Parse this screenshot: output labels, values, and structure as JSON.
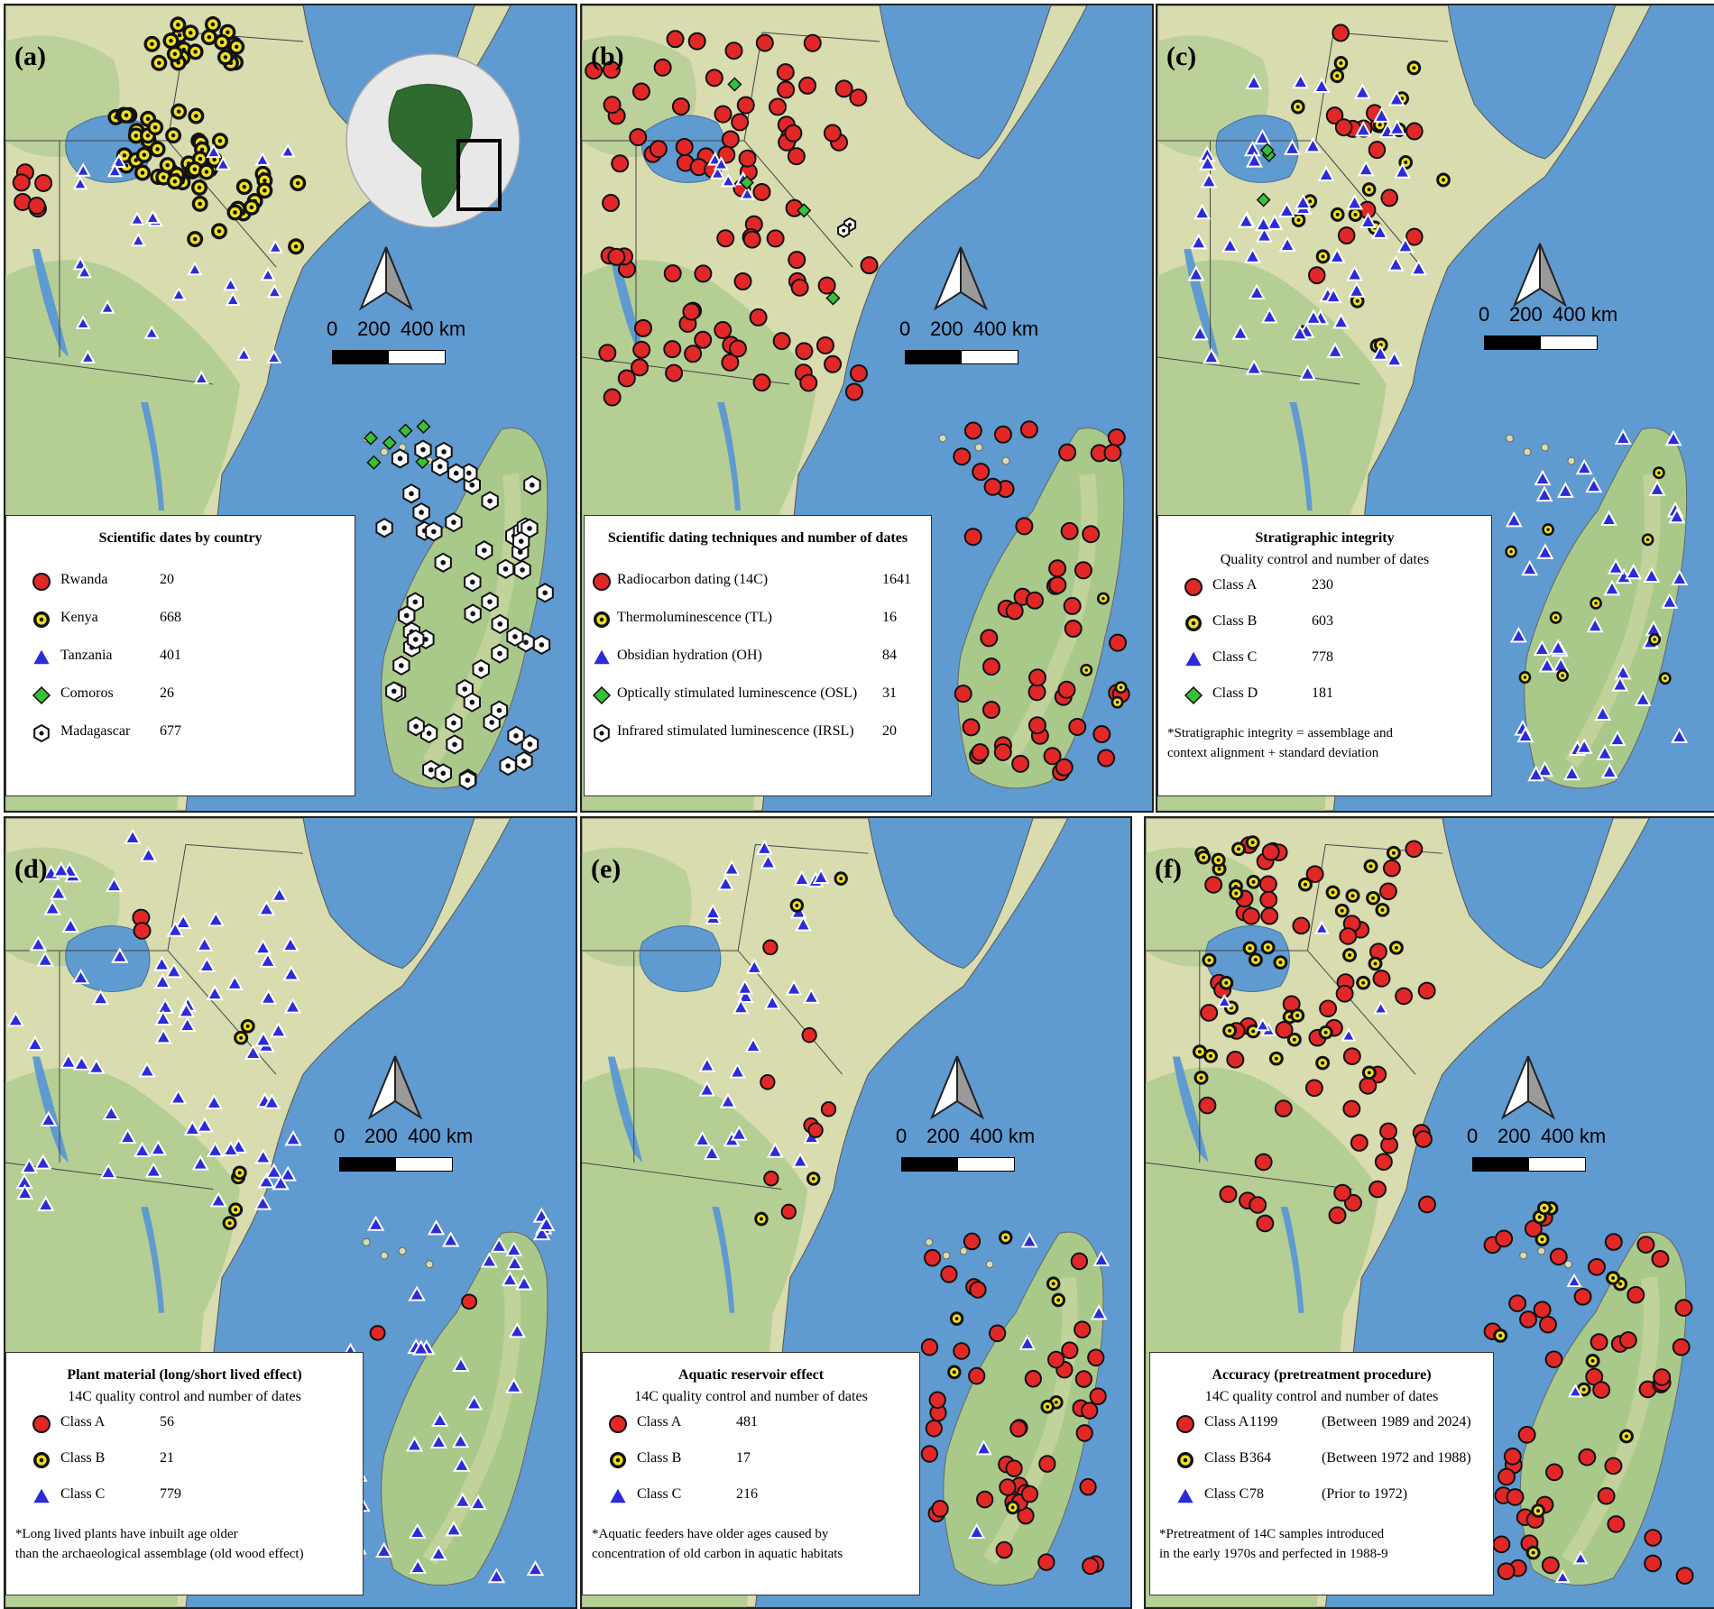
{
  "map": {
    "scale_labels": [
      "0",
      "200",
      "400 km"
    ],
    "colors": {
      "sea": "#5f9ad0",
      "land": "#d8dcae",
      "land_green": "#a9c98b",
      "class_a": "#e22727",
      "class_b_ring": "#f0e020",
      "class_c": "#2b2bd8",
      "class_d": "#38c038",
      "madagascar": "#ffffff"
    }
  },
  "panels": [
    {
      "label": "(a)",
      "legend": {
        "title": "Scientific dates by country",
        "subtitle": "",
        "rows": [
          {
            "symbol": "circle-red",
            "name": "Rwanda",
            "count": "20",
            "note": ""
          },
          {
            "symbol": "circle-yellow",
            "name": "Kenya",
            "count": "668",
            "note": ""
          },
          {
            "symbol": "triangle-blue",
            "name": "Tanzania",
            "count": "401",
            "note": ""
          },
          {
            "symbol": "diamond-green",
            "name": "Comoros",
            "count": "26",
            "note": ""
          },
          {
            "symbol": "hexagon-white",
            "name": "Madagascar",
            "count": "677",
            "note": ""
          }
        ],
        "footnote": []
      }
    },
    {
      "label": "(b)",
      "legend": {
        "title": "Scientific dating techniques and number of dates",
        "subtitle": "",
        "rows": [
          {
            "symbol": "circle-red",
            "name": "Radiocarbon dating (14C)",
            "count": "1641",
            "note": ""
          },
          {
            "symbol": "circle-yellow",
            "name": "Thermoluminescence (TL)",
            "count": "16",
            "note": ""
          },
          {
            "symbol": "triangle-blue",
            "name": "Obsidian hydration (OH)",
            "count": "84",
            "note": ""
          },
          {
            "symbol": "diamond-green",
            "name": "Optically stimulated luminescence (OSL)",
            "count": "31",
            "note": ""
          },
          {
            "symbol": "hexagon-white",
            "name": "Infrared stimulated luminescence (IRSL)",
            "count": "20",
            "note": ""
          }
        ],
        "footnote": []
      }
    },
    {
      "label": "(c)",
      "legend": {
        "title": "Stratigraphic integrity",
        "subtitle": "Quality control and number of dates",
        "rows": [
          {
            "symbol": "circle-red",
            "name": "Class A",
            "count": "230",
            "note": ""
          },
          {
            "symbol": "circle-yellow",
            "name": "Class B",
            "count": "603",
            "note": ""
          },
          {
            "symbol": "triangle-blue",
            "name": "Class C",
            "count": "778",
            "note": ""
          },
          {
            "symbol": "diamond-green",
            "name": "Class D",
            "count": "181",
            "note": ""
          }
        ],
        "footnote": [
          "*Stratigraphic integrity = assemblage and",
          "context alignment + standard deviation"
        ]
      }
    },
    {
      "label": "(d)",
      "legend": {
        "title": "Plant material (long/short lived effect)",
        "subtitle": "14C quality control and number of dates",
        "rows": [
          {
            "symbol": "circle-red",
            "name": "Class A",
            "count": "56",
            "note": ""
          },
          {
            "symbol": "circle-yellow",
            "name": "Class B",
            "count": "21",
            "note": ""
          },
          {
            "symbol": "triangle-blue",
            "name": "Class C",
            "count": "779",
            "note": ""
          }
        ],
        "footnote": [
          "*Long lived plants have inbuilt age older",
          "than the archaeological assemblage (old wood effect)"
        ]
      }
    },
    {
      "label": "(e)",
      "legend": {
        "title": "Aquatic reservoir effect",
        "subtitle": "14C quality control and number of dates",
        "rows": [
          {
            "symbol": "circle-red",
            "name": "Class A",
            "count": "481",
            "note": ""
          },
          {
            "symbol": "circle-yellow",
            "name": "Class B",
            "count": "17",
            "note": ""
          },
          {
            "symbol": "triangle-blue",
            "name": "Class C",
            "count": "216",
            "note": ""
          }
        ],
        "footnote": [
          "*Aquatic feeders have older ages caused by",
          "concentration of old carbon in aquatic habitats"
        ]
      }
    },
    {
      "label": "(f)",
      "legend": {
        "title": "Accuracy (pretreatment procedure)",
        "subtitle": "14C quality control and number of dates",
        "rows": [
          {
            "symbol": "circle-red",
            "name": "Class A",
            "count": "1199",
            "note": "(Between 1989 and 2024)"
          },
          {
            "symbol": "circle-yellow",
            "name": "Class B",
            "count": "364",
            "note": "(Between 1972 and 1988)"
          },
          {
            "symbol": "triangle-blue",
            "name": "Class C",
            "count": "78",
            "note": "(Prior to 1972)"
          }
        ],
        "footnote": [
          "*Pretreatment of 14C samples introduced",
          "in the early 1970s and perfected in 1988-9"
        ]
      }
    }
  ]
}
